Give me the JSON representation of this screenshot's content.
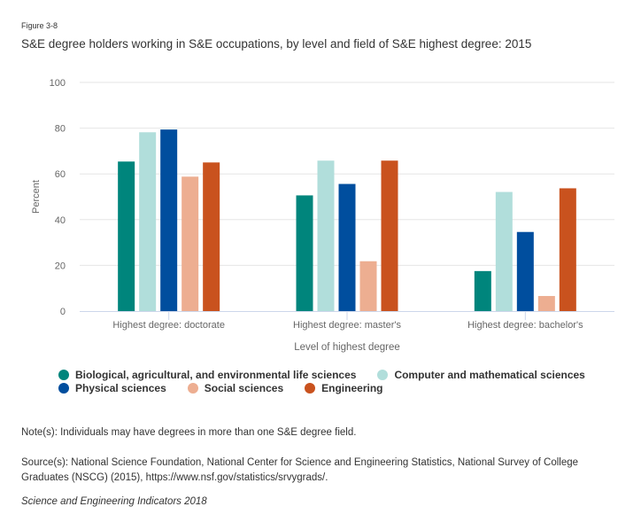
{
  "figure_label": "Figure 3-8",
  "title": "S&E degree holders working in S&E occupations, by level and field of S&E highest degree: 2015",
  "chart_data": {
    "type": "bar",
    "title": "S&E degree holders working in S&E occupations, by level and field of S&E highest degree: 2015",
    "xlabel": "Level of highest degree",
    "ylabel": "Percent",
    "ylim": [
      0,
      100
    ],
    "yticks": [
      0,
      20,
      40,
      60,
      80,
      100
    ],
    "grid": true,
    "legend_position": "bottom-left",
    "categories": [
      "Highest degree: doctorate",
      "Highest degree: master's",
      "Highest degree: bachelor's"
    ],
    "series": [
      {
        "name": "Biological, agricultural, and environmental life sciences",
        "color": "#00857c",
        "values": [
          65.4,
          50.6,
          17.5
        ]
      },
      {
        "name": "Computer and mathematical sciences",
        "color": "#b1dedb",
        "values": [
          78.2,
          65.8,
          52.1
        ]
      },
      {
        "name": "Physical sciences",
        "color": "#004e9e",
        "values": [
          79.4,
          55.6,
          34.6
        ]
      },
      {
        "name": "Social sciences",
        "color": "#edae91",
        "values": [
          58.8,
          21.8,
          6.6
        ]
      },
      {
        "name": "Engineering",
        "color": "#c9521e",
        "values": [
          65.0,
          65.8,
          53.7
        ]
      }
    ]
  },
  "legend_rows": [
    [
      0,
      1
    ],
    [
      2,
      3,
      4
    ]
  ],
  "note": "Note(s): Individuals may have degrees in more than one S&E degree field.",
  "source": "Source(s): National Science Foundation, National Center for Science and Engineering Statistics, National Survey of College Graduates (NSCG) (2015), https://www.nsf.gov/statistics/srvygrads/.",
  "credit": "Science and Engineering Indicators 2018"
}
